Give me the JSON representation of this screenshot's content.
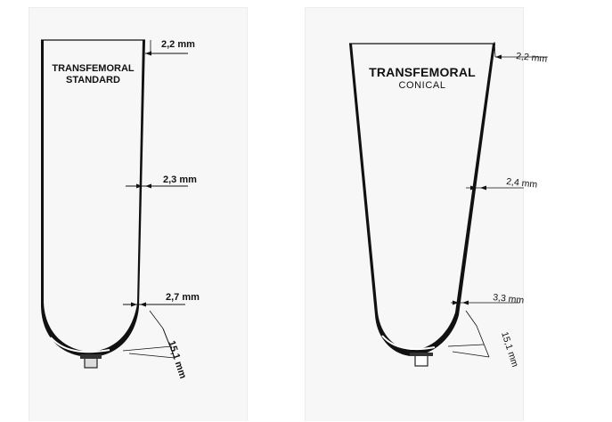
{
  "panels": [
    {
      "id": "standard",
      "title_line1": "TRANSFEMORAL",
      "title_line2": "STANDARD",
      "dimensions": {
        "top_wall": "2,2 mm",
        "mid_wall": "2,3 mm",
        "lower_wall": "2,7 mm",
        "bottom": "15,1 mm"
      }
    },
    {
      "id": "conical",
      "title_line1": "TRANSFEMORAL",
      "title_line2": "CONICAL",
      "dimensions": {
        "top_wall": "2,2 mm",
        "mid_wall": "2,4 mm",
        "lower_wall": "3,3 mm",
        "bottom": "15,1 mm"
      }
    }
  ]
}
